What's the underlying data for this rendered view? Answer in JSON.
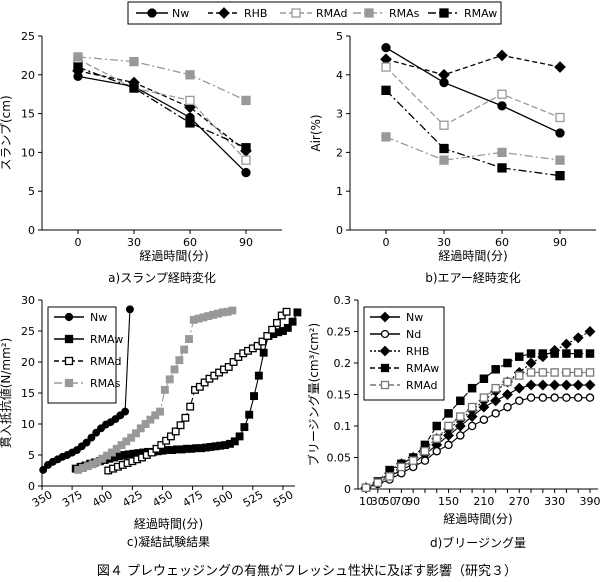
{
  "top_legend": [
    {
      "name": "Nw",
      "marker": "circle",
      "fill": "#000000",
      "color": "#000000",
      "dash": ""
    },
    {
      "name": "RHB",
      "marker": "diamond",
      "fill": "#000000",
      "color": "#000000",
      "dash": "5,3"
    },
    {
      "name": "RMAd",
      "marker": "square",
      "fill": "#ffffff",
      "color": "#999999",
      "dash": "6,3"
    },
    {
      "name": "RMAs",
      "marker": "square",
      "fill": "#999999",
      "color": "#999999",
      "dash": "8,3,2,3"
    },
    {
      "name": "RMAw",
      "marker": "square",
      "fill": "#000000",
      "color": "#000000",
      "dash": "8,3,2,3"
    }
  ],
  "figure_caption": "図４ プレウェッジングの有無がフレッシュ性状に及ぼす影響（研究３）",
  "chart_data": [
    {
      "id": "a",
      "type": "line",
      "caption": "a)スランプ経時変化",
      "xlabel": "経過時間(分)",
      "ylabel": "スランプ(cm)",
      "x": [
        0,
        30,
        60,
        90
      ],
      "xticks": [
        "0",
        "30",
        "60",
        "90"
      ],
      "ylim": [
        0,
        25
      ],
      "yticks": [
        0,
        5,
        10,
        15,
        20,
        25
      ],
      "series": [
        {
          "name": "Nw",
          "values": [
            19.8,
            18.5,
            14.5,
            7.4
          ]
        },
        {
          "name": "RHB",
          "values": [
            20.5,
            19.0,
            15.8,
            10.2
          ]
        },
        {
          "name": "RMAd",
          "values": [
            22.0,
            18.3,
            16.7,
            9.0
          ]
        },
        {
          "name": "RMAs",
          "values": [
            22.3,
            21.7,
            20.0,
            16.7
          ]
        },
        {
          "name": "RMAw",
          "values": [
            21.0,
            18.3,
            13.8,
            10.6
          ]
        }
      ]
    },
    {
      "id": "b",
      "type": "line",
      "caption": "b)エアー経時変化",
      "xlabel": "経過時間(分)",
      "ylabel": "Air(%)",
      "x": [
        0,
        30,
        60,
        90
      ],
      "xticks": [
        "0",
        "30",
        "60",
        "90"
      ],
      "ylim": [
        0,
        5
      ],
      "yticks": [
        0,
        1,
        2,
        3,
        4,
        5
      ],
      "series": [
        {
          "name": "Nw",
          "values": [
            4.7,
            3.8,
            3.2,
            2.5
          ]
        },
        {
          "name": "RHB",
          "values": [
            4.4,
            4.0,
            4.5,
            4.2
          ]
        },
        {
          "name": "RMAd",
          "values": [
            4.2,
            2.7,
            3.5,
            2.9
          ]
        },
        {
          "name": "RMAs",
          "values": [
            2.4,
            1.8,
            2.0,
            1.8
          ]
        },
        {
          "name": "RMAw",
          "values": [
            3.6,
            2.1,
            1.6,
            1.4
          ]
        }
      ]
    },
    {
      "id": "c",
      "type": "scatter",
      "caption": "c)凝結試験結果",
      "xlabel": "経過時間(分)",
      "ylabel": "貫入抵抗値(N/mm²)",
      "xlim": [
        350,
        560
      ],
      "xticks": [
        350,
        375,
        400,
        425,
        450,
        475,
        500,
        525,
        550
      ],
      "ylim": [
        0,
        30
      ],
      "yticks": [
        0,
        5,
        10,
        15,
        20,
        25,
        30
      ],
      "legend": [
        "Nw",
        "RMAw",
        "RMAd",
        "RMAs"
      ],
      "series": [
        {
          "name": "Nw",
          "x": [
            351,
            355,
            359,
            363,
            367,
            371,
            375,
            379,
            383,
            387,
            391,
            395,
            399,
            403,
            407,
            411,
            415,
            419,
            423
          ],
          "y": [
            2.6,
            3.4,
            3.9,
            4.3,
            4.7,
            5.0,
            5.4,
            5.8,
            6.4,
            7.0,
            7.8,
            8.6,
            9.3,
            9.9,
            10.3,
            10.8,
            11.4,
            12.0,
            28.5
          ]
        },
        {
          "name": "RMAw",
          "x": [
            378,
            382,
            386,
            390,
            394,
            398,
            402,
            406,
            410,
            414,
            418,
            422,
            426,
            430,
            434,
            438,
            442,
            446,
            450,
            454,
            458,
            462,
            466,
            470,
            474,
            478,
            482,
            486,
            490,
            494,
            498,
            502,
            506,
            510,
            514,
            518,
            522,
            526,
            530,
            534,
            538,
            542,
            546,
            550,
            554,
            558,
            562
          ],
          "y": [
            2.8,
            3.1,
            3.3,
            3.6,
            3.8,
            4.0,
            4.2,
            4.4,
            4.6,
            4.8,
            5.0,
            5.1,
            5.2,
            5.3,
            5.4,
            5.5,
            5.5,
            5.6,
            5.7,
            5.8,
            5.8,
            5.9,
            5.9,
            6.0,
            6.0,
            6.1,
            6.1,
            6.2,
            6.3,
            6.4,
            6.5,
            6.6,
            6.8,
            7.2,
            8.0,
            9.5,
            11.5,
            14.5,
            17.8,
            21.5,
            24.2,
            24.5,
            24.8,
            25.0,
            25.5,
            26.5,
            28.0
          ]
        },
        {
          "name": "RMAd",
          "x": [
            405,
            409,
            413,
            417,
            421,
            425,
            429,
            433,
            437,
            441,
            445,
            449,
            453,
            457,
            461,
            465,
            469,
            473,
            477,
            481,
            485,
            489,
            493,
            497,
            501,
            505,
            509,
            513,
            517,
            521,
            525,
            529,
            533,
            537,
            541,
            545,
            549,
            553
          ],
          "y": [
            2.5,
            2.8,
            3.1,
            3.4,
            3.7,
            4.0,
            4.3,
            4.6,
            5.0,
            5.4,
            6.0,
            6.6,
            7.3,
            8.0,
            8.8,
            9.8,
            11.0,
            12.8,
            15.5,
            16.0,
            16.7,
            17.3,
            17.8,
            18.3,
            18.8,
            19.2,
            20.0,
            20.8,
            21.4,
            21.8,
            22.2,
            22.6,
            23.3,
            24.2,
            25.2,
            26.3,
            27.5,
            28.1
          ]
        },
        {
          "name": "RMAs",
          "x": [
            380,
            384,
            388,
            392,
            396,
            400,
            404,
            408,
            412,
            416,
            420,
            424,
            428,
            432,
            436,
            440,
            444,
            448,
            452,
            456,
            460,
            464,
            468,
            472,
            476,
            480,
            484,
            488,
            492,
            496,
            500,
            504,
            508
          ],
          "y": [
            2.6,
            2.9,
            3.2,
            3.5,
            3.9,
            4.4,
            4.9,
            5.4,
            6.0,
            6.6,
            7.2,
            7.8,
            8.5,
            9.3,
            10.0,
            10.7,
            11.4,
            12.0,
            15.5,
            17.2,
            18.8,
            20.3,
            22.0,
            23.7,
            26.8,
            27.0,
            27.2,
            27.4,
            27.6,
            27.8,
            28.0,
            28.1,
            28.3
          ]
        }
      ]
    },
    {
      "id": "d",
      "type": "line",
      "caption": "d)ブリージング量",
      "xlabel": "経過時間(分)",
      "ylabel": "ブリージング量(cm³/cm²)",
      "x": [
        10,
        30,
        50,
        70,
        90,
        110,
        130,
        150,
        170,
        190,
        210,
        230,
        250,
        270,
        290,
        310,
        330,
        350,
        370,
        390
      ],
      "xticks": [
        "10",
        "30",
        "50",
        "70",
        "90",
        "110",
        "130",
        "150",
        "170",
        "190",
        "210",
        "230",
        "250",
        "270",
        "290",
        "310",
        "330",
        "350",
        "370",
        "390"
      ],
      "xtick_labels": [
        "10",
        "30",
        "50",
        "70",
        "90",
        "150",
        "210",
        "270",
        "330",
        "390"
      ],
      "ylim": [
        0,
        0.3
      ],
      "yticks": [
        0,
        0.05,
        0.1,
        0.15,
        0.2,
        0.25,
        0.3
      ],
      "ytick_labels": [
        "0",
        "0.05",
        "0.1",
        "0.15",
        "0.2",
        "0.25",
        "0.3"
      ],
      "legend": [
        "Nw",
        "Nd",
        "RHB",
        "RMAw",
        "RMAd"
      ],
      "series": [
        {
          "name": "Nw",
          "values": [
            0.002,
            0.01,
            0.02,
            0.03,
            0.04,
            0.055,
            0.07,
            0.085,
            0.1,
            0.115,
            0.13,
            0.14,
            0.15,
            0.16,
            0.165,
            0.165,
            0.165,
            0.165,
            0.165,
            0.165
          ]
        },
        {
          "name": "Nd",
          "values": [
            0.002,
            0.008,
            0.015,
            0.025,
            0.035,
            0.045,
            0.06,
            0.07,
            0.085,
            0.1,
            0.11,
            0.12,
            0.13,
            0.14,
            0.145,
            0.145,
            0.145,
            0.145,
            0.145,
            0.145
          ]
        },
        {
          "name": "RHB",
          "values": [
            0.002,
            0.01,
            0.025,
            0.04,
            0.05,
            0.065,
            0.08,
            0.095,
            0.11,
            0.125,
            0.14,
            0.155,
            0.17,
            0.185,
            0.2,
            0.21,
            0.22,
            0.23,
            0.24,
            0.25
          ]
        },
        {
          "name": "RMAw",
          "values": [
            0.002,
            0.012,
            0.03,
            0.04,
            0.05,
            0.07,
            0.1,
            0.12,
            0.14,
            0.16,
            0.175,
            0.19,
            0.2,
            0.21,
            0.215,
            0.215,
            0.215,
            0.215,
            0.215,
            0.215
          ]
        },
        {
          "name": "RMAd",
          "values": [
            0.002,
            0.01,
            0.02,
            0.035,
            0.045,
            0.06,
            0.08,
            0.1,
            0.115,
            0.13,
            0.145,
            0.16,
            0.17,
            0.18,
            0.185,
            0.185,
            0.185,
            0.185,
            0.185,
            0.185
          ]
        }
      ]
    }
  ]
}
